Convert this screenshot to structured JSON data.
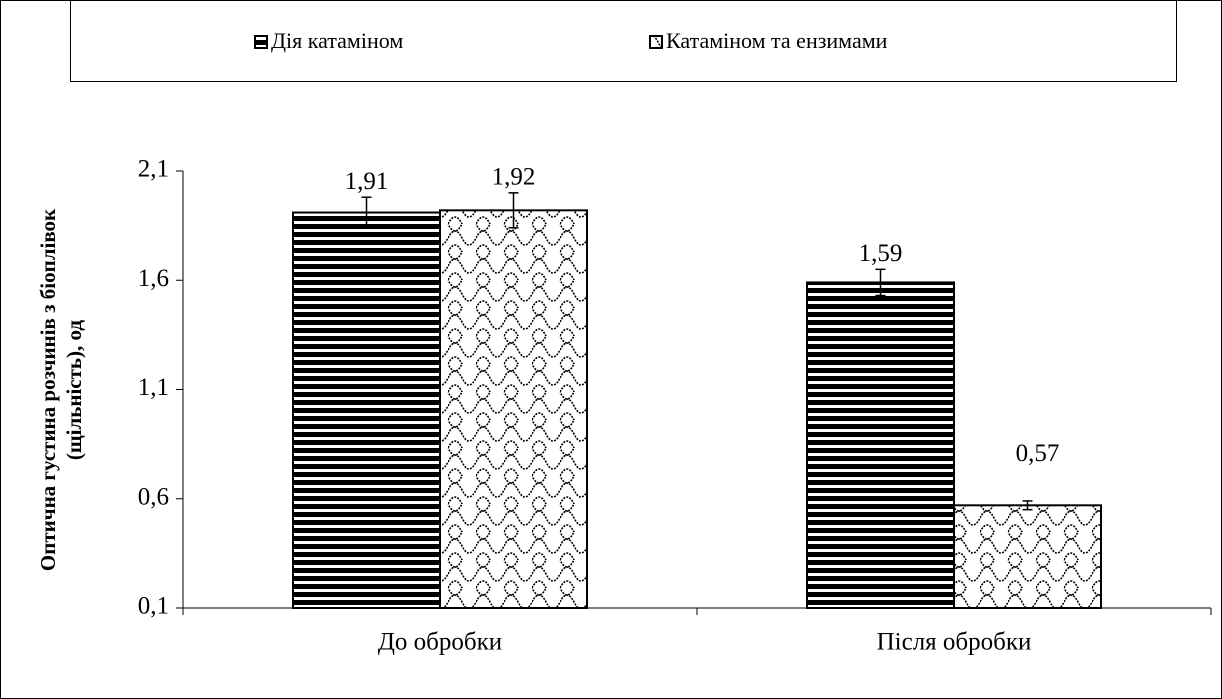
{
  "chart_data": {
    "type": "bar",
    "ylabel": [
      "Оптична густина розчинів  з біоплівок",
      "(щільність),  од"
    ],
    "categories": [
      "До обробки",
      "Після обробки"
    ],
    "series": [
      {
        "name": "Дія катаміном",
        "color": "#000000",
        "pattern": "horizontal-stripes",
        "values": [
          1.91,
          1.59
        ],
        "value_labels": [
          "1,91",
          "1,59"
        ],
        "errors": [
          0.07,
          0.06
        ]
      },
      {
        "name": "Катаміном та ензимами",
        "color": "#000000",
        "pattern": "scales",
        "values": [
          1.92,
          0.57
        ],
        "value_labels": [
          "1,92",
          "0,57"
        ],
        "errors": [
          0.08,
          0.02
        ]
      }
    ],
    "ylim": [
      0.1,
      2.1
    ],
    "yticks": [
      {
        "value": 0.1,
        "label": "0,1"
      },
      {
        "value": 0.6,
        "label": "0,6"
      },
      {
        "value": 1.1,
        "label": "1,1"
      },
      {
        "value": 1.6,
        "label": "1,6"
      },
      {
        "value": 2.1,
        "label": "2,1"
      }
    ],
    "legend": "top",
    "grid": false
  }
}
